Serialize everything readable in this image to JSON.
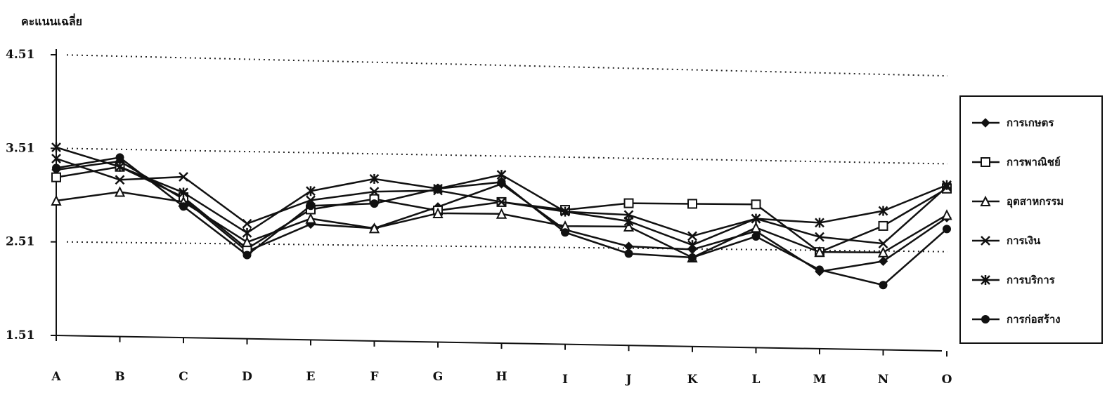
{
  "chart_data": {
    "type": "line",
    "ylabel": "คะแนนเฉลี่ย",
    "xlabel": "",
    "title": "",
    "categories": [
      "A",
      "B",
      "C",
      "D",
      "E",
      "F",
      "G",
      "H",
      "I",
      "J",
      "K",
      "L",
      "M",
      "N",
      "O"
    ],
    "yticks": [
      "4.51",
      "3.51",
      "2.51",
      "1.51"
    ],
    "ylim": [
      1.51,
      4.51
    ],
    "reference_lines": [
      4.51,
      3.51,
      2.51
    ],
    "grid": false,
    "legend_position": "right",
    "series": [
      {
        "name": "การเกษตร",
        "marker": "diamond",
        "values": [
          3.28,
          3.38,
          2.98,
          2.42,
          2.72,
          2.68,
          2.92,
          3.18,
          2.68,
          2.5,
          2.47,
          2.68,
          2.23,
          2.35,
          2.85
        ]
      },
      {
        "name": "การพาณิชย์",
        "marker": "square",
        "values": [
          3.2,
          3.32,
          3.0,
          2.45,
          2.88,
          3.0,
          2.88,
          2.98,
          2.9,
          2.98,
          2.98,
          2.98,
          2.45,
          2.75,
          3.18
        ]
      },
      {
        "name": "อุตสาหกรรม",
        "marker": "triangle",
        "values": [
          2.95,
          3.05,
          2.95,
          2.52,
          2.78,
          2.68,
          2.85,
          2.85,
          2.72,
          2.72,
          2.38,
          2.72,
          2.45,
          2.45,
          2.88
        ]
      },
      {
        "name": "การเงิน",
        "marker": "x",
        "values": [
          3.4,
          3.18,
          3.22,
          2.72,
          2.98,
          3.08,
          3.1,
          2.98,
          2.88,
          2.85,
          2.62,
          2.82,
          2.62,
          2.55,
          3.2
        ]
      },
      {
        "name": "การบริการ",
        "marker": "star",
        "values": [
          3.52,
          3.32,
          3.05,
          2.62,
          3.08,
          3.22,
          3.12,
          3.28,
          2.88,
          2.78,
          2.52,
          2.82,
          2.78,
          2.92,
          3.22
        ]
      },
      {
        "name": "การก่อสร้าง",
        "marker": "circle",
        "values": [
          3.3,
          3.42,
          2.9,
          2.38,
          2.92,
          2.95,
          3.12,
          3.2,
          2.65,
          2.42,
          2.38,
          2.62,
          2.25,
          2.08,
          2.72
        ]
      }
    ]
  }
}
